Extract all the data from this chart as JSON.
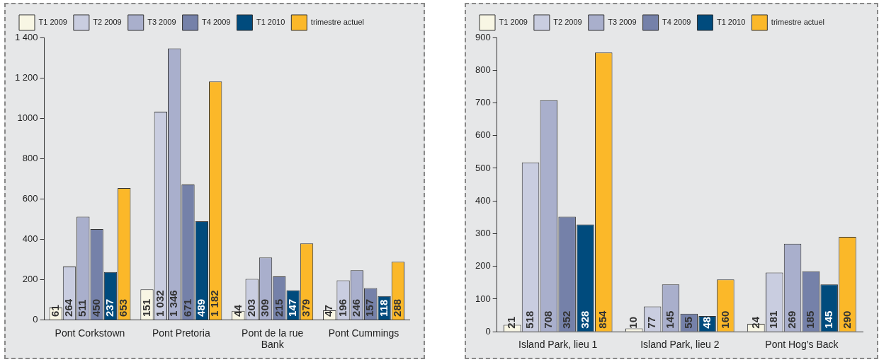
{
  "chart_data": [
    {
      "type": "bar",
      "categories": [
        "Pont Corkstown",
        "Pont Pretoria",
        "Pont de la rue Bank",
        "Pont Cummings"
      ],
      "series": [
        {
          "name": "T1 2009",
          "color": "#f8f6e4",
          "values": [
            61,
            151,
            44,
            47
          ],
          "value_labels": [
            "61",
            "151",
            "44",
            "47"
          ]
        },
        {
          "name": "T2 2009",
          "color": "#c9cde0",
          "values": [
            264,
            1032,
            203,
            196
          ],
          "value_labels": [
            "264",
            "1 032",
            "203",
            "196"
          ]
        },
        {
          "name": "T3 2009",
          "color": "#a9afcc",
          "values": [
            511,
            1346,
            309,
            246
          ],
          "value_labels": [
            "511",
            "1 346",
            "309",
            "246"
          ]
        },
        {
          "name": "T4 2009",
          "color": "#7581a9",
          "values": [
            450,
            671,
            215,
            157
          ],
          "value_labels": [
            "450",
            "671",
            "215",
            "157"
          ]
        },
        {
          "name": "T1 2010",
          "color": "#004b7d",
          "values": [
            237,
            489,
            147,
            118
          ],
          "value_labels": [
            "237",
            "489",
            "147",
            "118"
          ]
        },
        {
          "name": "trimestre actuel",
          "color": "#fbb829",
          "values": [
            653,
            1182,
            379,
            288
          ],
          "value_labels": [
            "653",
            "1 182",
            "379",
            "288"
          ]
        }
      ],
      "ylim": [
        0,
        1400
      ],
      "yticks": [
        0,
        200,
        400,
        600,
        800,
        1000,
        {
          "value": 1200,
          "label": "1 200"
        },
        {
          "value": 1400,
          "label": "1 400"
        }
      ],
      "grid": false,
      "legend": "top left"
    },
    {
      "type": "bar",
      "categories": [
        "Island Park, lieu 1",
        "Island Park, lieu 2",
        "Pont Hog’s Back"
      ],
      "series": [
        {
          "name": "T1 2009",
          "color": "#f8f6e4",
          "values": [
            21,
            10,
            24
          ]
        },
        {
          "name": "T2 2009",
          "color": "#c9cde0",
          "values": [
            518,
            77,
            181
          ]
        },
        {
          "name": "T3 2009",
          "color": "#a9afcc",
          "values": [
            708,
            145,
            269
          ]
        },
        {
          "name": "T4 2009",
          "color": "#7581a9",
          "values": [
            352,
            55,
            185
          ]
        },
        {
          "name": "T1 2010",
          "color": "#004b7d",
          "values": [
            328,
            48,
            145
          ]
        },
        {
          "name": "trimestre actuel",
          "color": "#fbb829",
          "values": [
            854,
            160,
            290
          ]
        }
      ],
      "ylim": [
        0,
        900
      ],
      "yticks": [
        0,
        100,
        200,
        300,
        400,
        500,
        600,
        700,
        800,
        900
      ],
      "grid": false,
      "data_labels": true,
      "legend": "top left"
    }
  ]
}
